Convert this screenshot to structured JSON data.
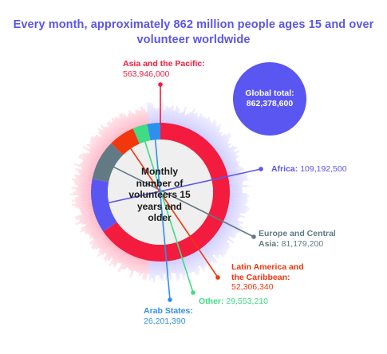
{
  "title": {
    "line1": "Every month, approximately 862 million people ages 15 and over",
    "line2": "volunteer worldwide"
  },
  "global": {
    "label": "Global total:",
    "value": "862,378,600"
  },
  "center_label": "Monthly number of volunteers 15 years and older",
  "chart_data": {
    "type": "pie",
    "donut": true,
    "title": "Every month, approximately 862 million people ages 15 and over volunteer worldwide",
    "total": 862378600,
    "series": [
      {
        "name": "Asia and the Pacific",
        "value": 563946000,
        "value_label": "563,946,000",
        "color": "#f31c3e"
      },
      {
        "name": "Africa",
        "value": 109192500,
        "value_label": "109,192,500",
        "color": "#5a56f2"
      },
      {
        "name": "Europe and Central Asia",
        "value": 81179200,
        "value_label": "81,179,200",
        "color": "#627a84"
      },
      {
        "name": "Latin America and the Caribbean",
        "value": 52306340,
        "value_label": "52,306,340",
        "color": "#f2360e"
      },
      {
        "name": "Other",
        "value": 29553210,
        "value_label": "29,553,210",
        "color": "#3fdc84"
      },
      {
        "name": "Arab States",
        "value": 26201390,
        "value_label": "26,201,390",
        "color": "#2f8fef"
      }
    ]
  },
  "labels": {
    "asia": {
      "name": "Asia and the Pacific:",
      "value": "563,946,000"
    },
    "africa": {
      "name": "Africa:",
      "value": "109,192,500"
    },
    "europe": {
      "name1": "Europe and Central",
      "name2": "Asia:",
      "value": "81,179,200"
    },
    "latam": {
      "name1": "Latin America and",
      "name2": "the Caribbean:",
      "value": "52,306,340"
    },
    "other": {
      "name": "Other:",
      "value": "29,553,210"
    },
    "arab": {
      "name": "Arab States:",
      "value": "26,201,390"
    }
  }
}
